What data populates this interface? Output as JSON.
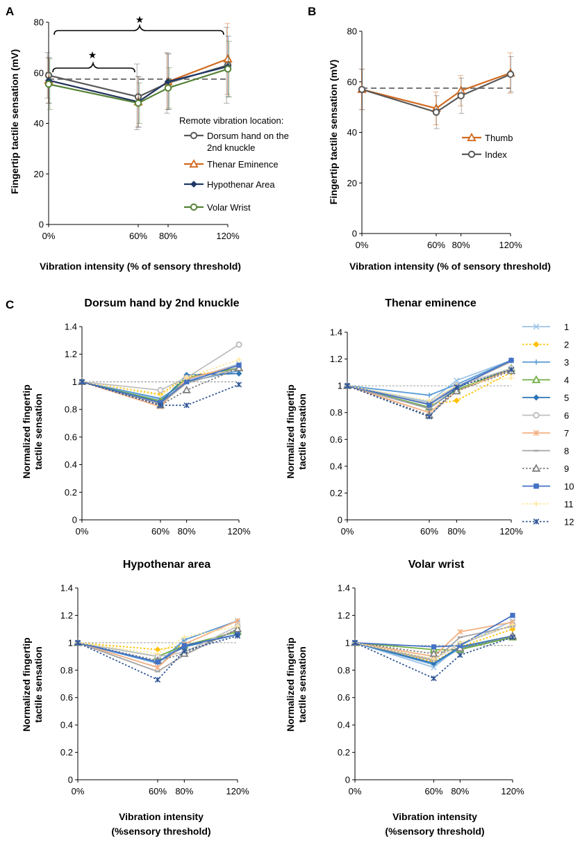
{
  "panels": {
    "A": {
      "letter": "A",
      "ylabel": "Fingertip tactile sensation (mV)",
      "xlabel": "Vibration intensity (% of sensory threshold)",
      "legend_title": "Remote vibration location:",
      "star": "★"
    },
    "B": {
      "letter": "B",
      "ylabel": "Fingertip tactile sensation (mV)",
      "xlabel": "Vibration intensity (% of sensory threshold)"
    },
    "C": {
      "letter": "C",
      "ylabel_line1": "Normalized fingertip",
      "ylabel_line2": "tactile sensation",
      "xlabel_line1": "Vibration intensity",
      "xlabel_line2": "(%sensory threshold)"
    }
  },
  "chart_data": [
    {
      "id": "A",
      "type": "line",
      "x": [
        0,
        60,
        80,
        120
      ],
      "xtick_labels": [
        "0%",
        "60%",
        "80%",
        "120%"
      ],
      "ylim": [
        0,
        80
      ],
      "yticks": [
        0,
        20,
        40,
        60,
        80
      ],
      "baseline": 57.5,
      "series": [
        {
          "name": "Dorsum hand on the 2nd knuckle",
          "values": [
            59,
            50.5,
            56,
            63
          ],
          "err": [
            9,
            13,
            12,
            15
          ],
          "color": "#595959",
          "marker": "circle"
        },
        {
          "name": "Thenar Eminence",
          "values": [
            57,
            48.5,
            56.5,
            65.5
          ],
          "err": [
            9,
            10,
            11,
            14
          ],
          "color": "#D2691E",
          "marker": "triangle"
        },
        {
          "name": "Hypothenar Area",
          "values": [
            57,
            48.5,
            56.5,
            62.5
          ],
          "err": [
            9,
            10,
            11,
            12
          ],
          "color": "#1F3864",
          "marker": "diamond"
        },
        {
          "name": "Volar Wrist",
          "values": [
            55.5,
            48,
            54,
            61.5
          ],
          "err": [
            10,
            8,
            8,
            11
          ],
          "color": "#548235",
          "marker": "circle"
        }
      ]
    },
    {
      "id": "B",
      "type": "line",
      "x": [
        0,
        60,
        80,
        120
      ],
      "xtick_labels": [
        "0%",
        "60%",
        "80%",
        "120%"
      ],
      "ylim": [
        0,
        80
      ],
      "yticks": [
        0,
        20,
        40,
        60,
        80
      ],
      "baseline": 57.5,
      "series": [
        {
          "name": "Thumb",
          "values": [
            57,
            49.5,
            56.5,
            63.5
          ],
          "err": [
            8,
            6.5,
            6,
            8
          ],
          "color": "#D2691E",
          "marker": "triangle"
        },
        {
          "name": "Index",
          "values": [
            57,
            48,
            54.5,
            63
          ],
          "err": [
            8,
            6.5,
            7,
            7
          ],
          "color": "#595959",
          "marker": "circle"
        }
      ]
    },
    {
      "id": "C1",
      "type": "line",
      "title": "Dorsum hand by 2nd knuckle",
      "x": [
        0,
        60,
        80,
        120
      ],
      "xtick_labels": [
        "0%",
        "60%",
        "80%",
        "120%"
      ],
      "ylim": [
        0,
        1.4
      ],
      "yticks": [
        0,
        0.2,
        0.4,
        0.6,
        0.8,
        1,
        1.2,
        1.4
      ],
      "ytick_labels": [
        "0",
        "0.2",
        "0.4",
        "0.6",
        "0.8",
        "1",
        "1.2",
        "1.4"
      ],
      "baseline": 1,
      "series": [
        {
          "name": "1",
          "values": [
            1,
            0.87,
            1.01,
            1.13
          ]
        },
        {
          "name": "2",
          "values": [
            1,
            0.91,
            1.04,
            1.1
          ]
        },
        {
          "name": "3",
          "values": [
            1,
            0.88,
            1.0,
            1.08
          ]
        },
        {
          "name": "4",
          "values": [
            1,
            0.86,
            1.03,
            1.1
          ]
        },
        {
          "name": "5",
          "values": [
            1,
            0.85,
            1.05,
            1.06
          ]
        },
        {
          "name": "6",
          "values": [
            1,
            0.94,
            1.03,
            1.27
          ]
        },
        {
          "name": "7",
          "values": [
            1,
            0.82,
            1.02,
            1.12
          ]
        },
        {
          "name": "8",
          "values": [
            1,
            0.84,
            0.99,
            1.1
          ]
        },
        {
          "name": "9",
          "values": [
            1,
            0.83,
            0.94,
            1.1
          ]
        },
        {
          "name": "10",
          "values": [
            1,
            0.85,
            1.0,
            1.12
          ]
        },
        {
          "name": "11",
          "values": [
            1,
            0.9,
            1.03,
            1.16
          ]
        },
        {
          "name": "12",
          "values": [
            1,
            0.83,
            0.83,
            0.98
          ]
        }
      ]
    },
    {
      "id": "C2",
      "type": "line",
      "title": "Thenar eminence",
      "x": [
        0,
        60,
        80,
        120
      ],
      "xtick_labels": [
        "0%",
        "60%",
        "80%",
        "120%"
      ],
      "ylim": [
        0,
        1.4
      ],
      "yticks": [
        0,
        0.2,
        0.4,
        0.6,
        0.8,
        1,
        1.2,
        1.4
      ],
      "ytick_labels": [
        "0",
        "0.2",
        "0.4",
        "0.6",
        "0.8",
        "1",
        "1.2",
        "1.4"
      ],
      "baseline": 1,
      "series": [
        {
          "name": "1",
          "values": [
            1,
            0.88,
            1.04,
            1.19
          ]
        },
        {
          "name": "2",
          "values": [
            1,
            0.86,
            0.89,
            1.1
          ]
        },
        {
          "name": "3",
          "values": [
            1,
            0.93,
            1.01,
            1.19
          ]
        },
        {
          "name": "4",
          "values": [
            1,
            0.84,
            0.97,
            1.13
          ]
        },
        {
          "name": "5",
          "values": [
            1,
            0.83,
            0.98,
            1.19
          ]
        },
        {
          "name": "6",
          "values": [
            1,
            0.87,
            1.0,
            1.13
          ]
        },
        {
          "name": "7",
          "values": [
            1,
            0.8,
            0.96,
            1.12
          ]
        },
        {
          "name": "8",
          "values": [
            1,
            0.83,
            0.99,
            1.18
          ]
        },
        {
          "name": "9",
          "values": [
            1,
            0.78,
            0.96,
            1.11
          ]
        },
        {
          "name": "10",
          "values": [
            1,
            0.86,
            0.99,
            1.19
          ]
        },
        {
          "name": "11",
          "values": [
            1,
            0.89,
            1.0,
            1.06
          ]
        },
        {
          "name": "12",
          "values": [
            1,
            0.77,
            0.99,
            1.12
          ]
        }
      ]
    },
    {
      "id": "C3",
      "type": "line",
      "title": "Hypothenar area",
      "x": [
        0,
        60,
        80,
        120
      ],
      "xtick_labels": [
        "0%",
        "60%",
        "80%",
        "120%"
      ],
      "ylim": [
        0,
        1.4
      ],
      "yticks": [
        0,
        0.2,
        0.4,
        0.6,
        0.8,
        1,
        1.2,
        1.4
      ],
      "ytick_labels": [
        "0",
        "0.2",
        "0.4",
        "0.6",
        "0.8",
        "1",
        "1.2",
        "1.4"
      ],
      "baseline": 1,
      "series": [
        {
          "name": "1",
          "values": [
            1,
            0.82,
            1.02,
            1.16
          ]
        },
        {
          "name": "2",
          "values": [
            1,
            0.95,
            0.98,
            1.08
          ]
        },
        {
          "name": "3",
          "values": [
            1,
            0.85,
            1.02,
            1.16
          ]
        },
        {
          "name": "4",
          "values": [
            1,
            0.9,
            0.98,
            1.08
          ]
        },
        {
          "name": "5",
          "values": [
            1,
            0.86,
            0.97,
            1.06
          ]
        },
        {
          "name": "6",
          "values": [
            1,
            0.9,
            0.93,
            1.12
          ]
        },
        {
          "name": "7",
          "values": [
            1,
            0.82,
            0.99,
            1.16
          ]
        },
        {
          "name": "8",
          "values": [
            1,
            0.79,
            0.91,
            1.1
          ]
        },
        {
          "name": "9",
          "values": [
            1,
            0.87,
            0.92,
            1.1
          ]
        },
        {
          "name": "10",
          "values": [
            1,
            0.86,
            0.98,
            1.06
          ]
        },
        {
          "name": "11",
          "values": [
            1,
            0.92,
            1.04,
            1.12
          ]
        },
        {
          "name": "12",
          "values": [
            1,
            0.73,
            0.94,
            1.05
          ]
        }
      ]
    },
    {
      "id": "C4",
      "type": "line",
      "title": "Volar wrist",
      "x": [
        0,
        60,
        80,
        120
      ],
      "xtick_labels": [
        "0%",
        "60%",
        "80%",
        "120%"
      ],
      "ylim": [
        0,
        1.4
      ],
      "yticks": [
        0,
        0.2,
        0.4,
        0.6,
        0.8,
        1,
        1.2,
        1.4
      ],
      "ytick_labels": [
        "0",
        "0.2",
        "0.4",
        "0.6",
        "0.8",
        "1",
        "1.2",
        "1.4"
      ],
      "baseline": 0.98,
      "series": [
        {
          "name": "1",
          "values": [
            1,
            0.82,
            0.98,
            1.16
          ]
        },
        {
          "name": "2",
          "values": [
            1,
            0.86,
            0.97,
            1.1
          ]
        },
        {
          "name": "3",
          "values": [
            1,
            0.84,
            0.96,
            1.04
          ]
        },
        {
          "name": "4",
          "values": [
            1,
            0.95,
            0.95,
            1.04
          ]
        },
        {
          "name": "5",
          "values": [
            1,
            0.85,
            0.97,
            1.05
          ]
        },
        {
          "name": "6",
          "values": [
            1,
            0.88,
            0.99,
            1.13
          ]
        },
        {
          "name": "7",
          "values": [
            1,
            0.9,
            1.08,
            1.15
          ]
        },
        {
          "name": "8",
          "values": [
            1,
            0.87,
            1.04,
            1.12
          ]
        },
        {
          "name": "9",
          "values": [
            1,
            0.92,
            0.96,
            1.05
          ]
        },
        {
          "name": "10",
          "values": [
            1,
            0.97,
            0.98,
            1.2
          ]
        },
        {
          "name": "11",
          "values": [
            1,
            0.88,
            1.0,
            1.13
          ]
        },
        {
          "name": "12",
          "values": [
            1,
            0.74,
            0.91,
            1.04
          ]
        }
      ]
    }
  ],
  "c_legend": [
    {
      "name": "1",
      "color": "#9DC3E6",
      "marker": "x",
      "dash": false
    },
    {
      "name": "2",
      "color": "#FFC000",
      "marker": "diamond",
      "dash": true
    },
    {
      "name": "3",
      "color": "#5B9BD5",
      "marker": "plus",
      "dash": false
    },
    {
      "name": "4",
      "color": "#70AD47",
      "marker": "triangle",
      "dash": false
    },
    {
      "name": "5",
      "color": "#2E75B6",
      "marker": "diamond",
      "dash": false
    },
    {
      "name": "6",
      "color": "#BFBFBF",
      "marker": "circle",
      "dash": false
    },
    {
      "name": "7",
      "color": "#F4B183",
      "marker": "star",
      "dash": false
    },
    {
      "name": "8",
      "color": "#A5A5A5",
      "marker": "dash",
      "dash": false
    },
    {
      "name": "9",
      "color": "#7F7F7F",
      "marker": "triangle",
      "dash": true
    },
    {
      "name": "10",
      "color": "#4472C4",
      "marker": "square",
      "dash": false
    },
    {
      "name": "11",
      "color": "#FFE699",
      "marker": "plus",
      "dash": true
    },
    {
      "name": "12",
      "color": "#2F5597",
      "marker": "star",
      "dash": true
    }
  ]
}
